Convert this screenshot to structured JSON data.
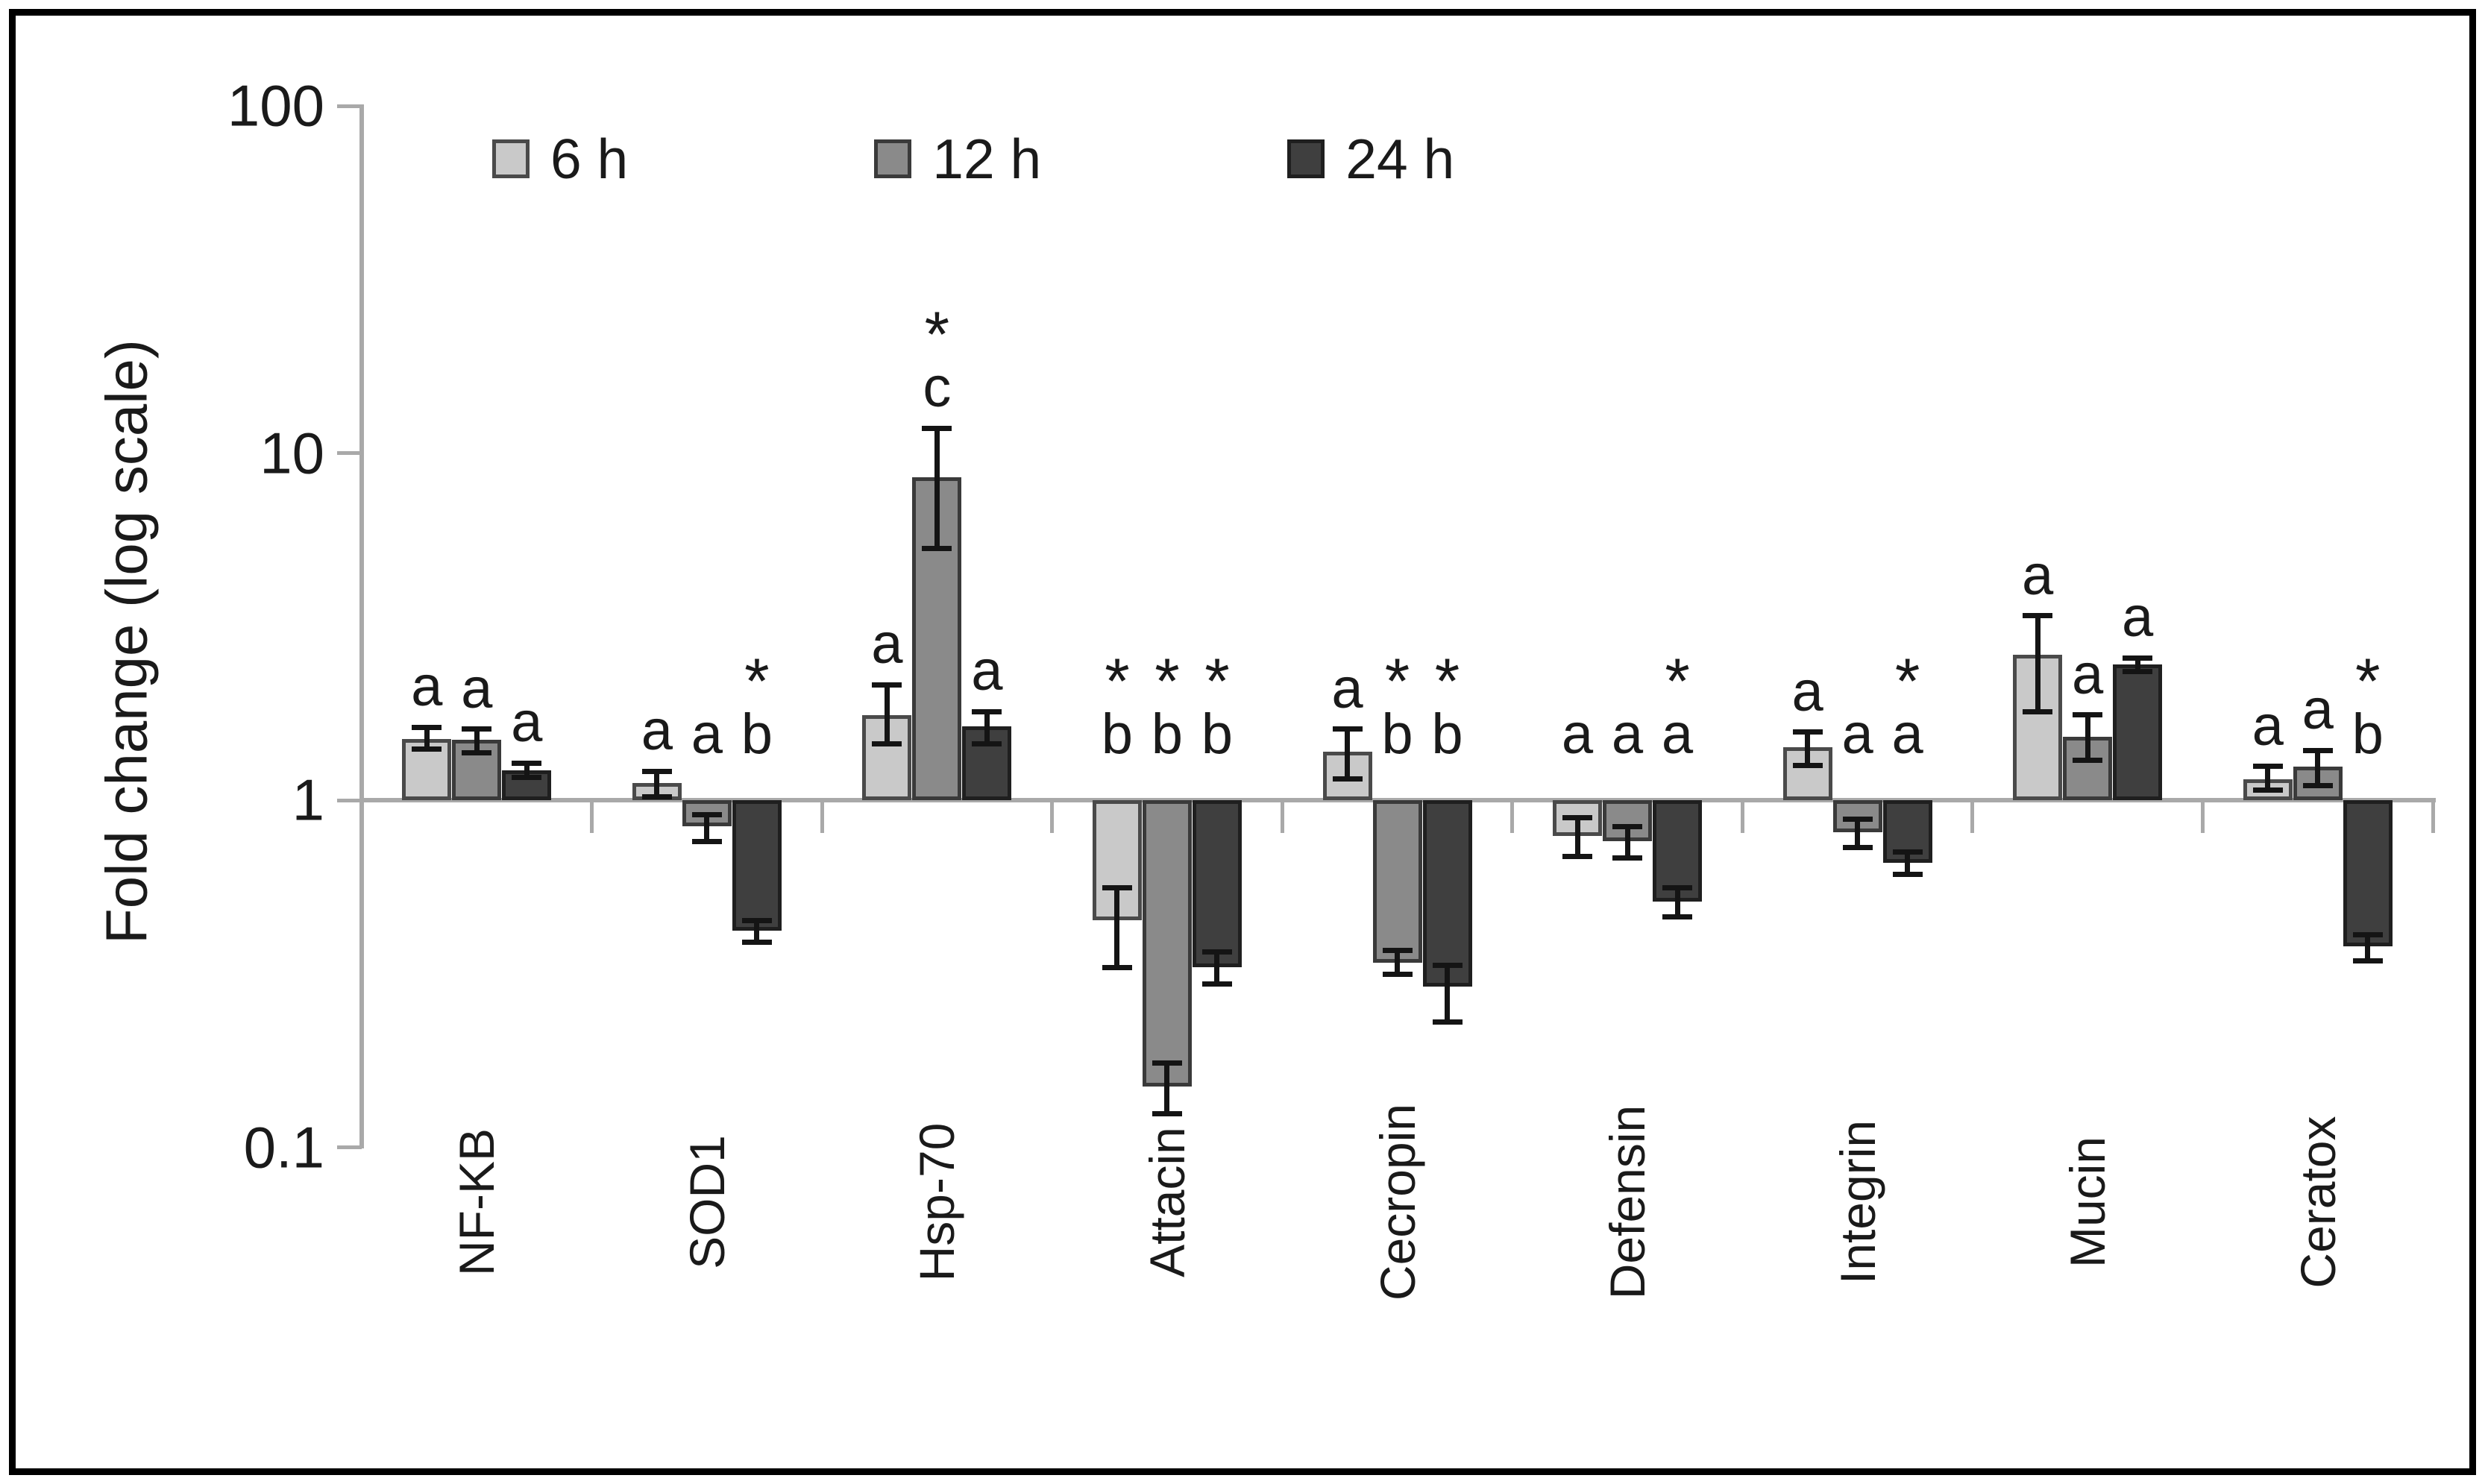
{
  "ylabel": "Fold change  (log scale)",
  "legend": {
    "items": [
      {
        "label": "6 h",
        "color": "#c9c9c9",
        "border": "#4a4a4a"
      },
      {
        "label": "12 h",
        "color": "#8a8a8a",
        "border": "#3a3a3a"
      },
      {
        "label": "24 h",
        "color": "#3f3f3f",
        "border": "#1f1f1f"
      }
    ]
  },
  "chart_data": {
    "type": "bar",
    "log_scale": true,
    "ylabel": "Fold change  (log scale)",
    "ylim": [
      0.1,
      100
    ],
    "baseline_value": 1,
    "yticks": [
      {
        "label": "100",
        "value": 100
      },
      {
        "label": "10",
        "value": 10
      },
      {
        "label": "1",
        "value": 1
      },
      {
        "label": "0.1",
        "value": 0.1
      }
    ],
    "grid": false,
    "legend_position": "top",
    "categories": [
      "NF-KB",
      "SOD1",
      "Hsp-70",
      "Attacin",
      "Cecropin",
      "Defensin",
      "Integrin",
      "Mucin",
      "Ceratox"
    ],
    "series": [
      {
        "name": "6 h",
        "color": "#c9c9c9",
        "border": "#4a4a4a",
        "values": [
          1.5,
          1.12,
          1.76,
          0.45,
          1.38,
          0.79,
          1.42,
          2.63,
          1.15
        ],
        "err_low": [
          1.4,
          1.02,
          1.45,
          0.33,
          1.15,
          0.69,
          1.26,
          1.8,
          1.07
        ],
        "err_high": [
          1.62,
          1.21,
          2.15,
          0.56,
          1.6,
          0.89,
          1.57,
          3.4,
          1.25
        ],
        "letters": [
          "a",
          "a",
          "a",
          "b",
          "a",
          "a",
          "a",
          "a",
          "a"
        ],
        "stars": [
          false,
          false,
          false,
          true,
          false,
          false,
          false,
          false,
          false
        ]
      },
      {
        "name": "12 h",
        "color": "#8a8a8a",
        "border": "#3a3a3a",
        "values": [
          1.49,
          0.84,
          8.5,
          0.15,
          0.34,
          0.76,
          0.81,
          1.52,
          1.25
        ],
        "err_low": [
          1.37,
          0.76,
          5.3,
          0.125,
          0.315,
          0.68,
          0.73,
          1.3,
          1.1
        ],
        "err_high": [
          1.6,
          0.91,
          11.8,
          0.175,
          0.37,
          0.84,
          0.88,
          1.76,
          1.39
        ],
        "letters": [
          "a",
          "a",
          "c",
          "b",
          "b",
          "a",
          "a",
          "a",
          "a"
        ],
        "stars": [
          false,
          false,
          true,
          true,
          true,
          false,
          false,
          false,
          false
        ]
      },
      {
        "name": "24 h",
        "color": "#3f3f3f",
        "border": "#1f1f1f",
        "values": [
          1.22,
          0.42,
          1.63,
          0.33,
          0.29,
          0.51,
          0.66,
          2.46,
          0.38
        ],
        "err_low": [
          1.16,
          0.39,
          1.45,
          0.295,
          0.23,
          0.46,
          0.61,
          2.35,
          0.345
        ],
        "err_high": [
          1.28,
          0.45,
          1.8,
          0.365,
          0.335,
          0.56,
          0.71,
          2.57,
          0.41
        ],
        "letters": [
          "a",
          "b",
          "a",
          "b",
          "b",
          "a",
          "a",
          "a",
          "b"
        ],
        "stars": [
          false,
          true,
          false,
          true,
          true,
          true,
          true,
          false,
          true
        ]
      }
    ]
  }
}
